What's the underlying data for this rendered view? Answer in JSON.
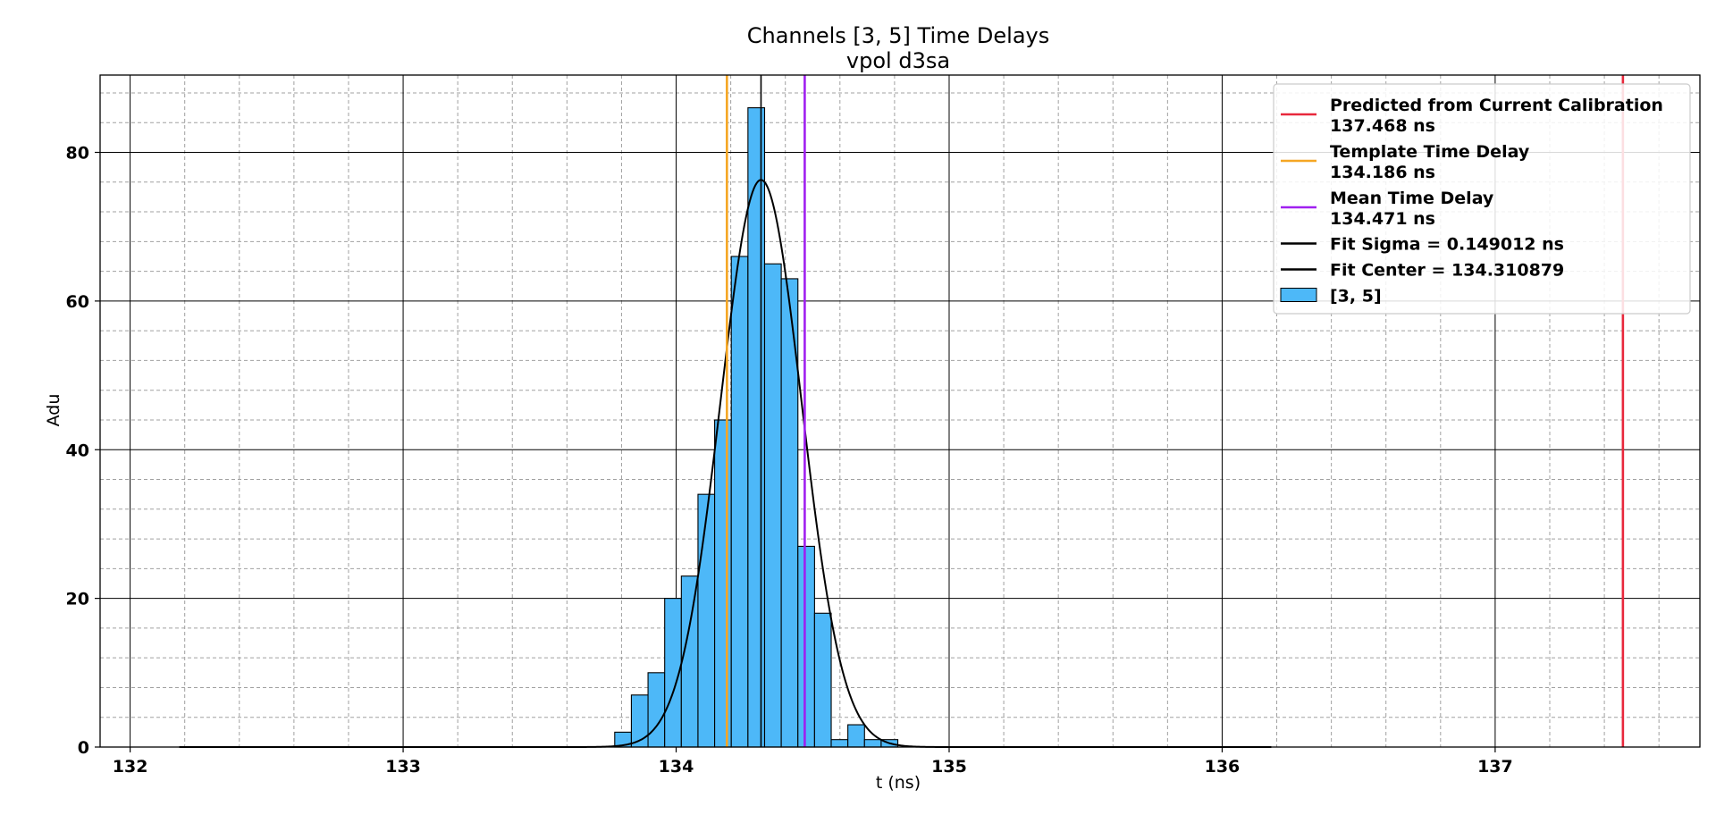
{
  "chart_data": {
    "type": "bar",
    "title": "Channels [3, 5] Time Delays",
    "subtitle": "vpol d3sa",
    "xlabel": "t (ns)",
    "ylabel": "Adu",
    "xlim": [
      131.89,
      137.75
    ],
    "ylim": [
      0,
      90.4
    ],
    "xticks": [
      132,
      133,
      134,
      135,
      136,
      137
    ],
    "yticks": [
      0,
      20,
      40,
      60,
      80
    ],
    "grid": true,
    "minor_grid": true,
    "legend_position": "top-right",
    "histogram": {
      "name": "[3, 5]",
      "color": "#4db8f8",
      "bin_width": 0.061,
      "bin_starts": [
        133.775,
        133.836,
        133.897,
        133.958,
        134.019,
        134.08,
        134.141,
        134.202,
        134.263,
        134.324,
        134.385,
        134.446,
        134.507,
        134.568,
        134.629,
        134.69,
        134.751
      ],
      "counts": [
        2,
        7,
        10,
        20,
        23,
        34,
        44,
        66,
        86,
        65,
        63,
        27,
        18,
        1,
        3,
        1,
        1
      ]
    },
    "fit": {
      "color": "#000000",
      "amplitude": 76.3,
      "center": 134.310879,
      "sigma": 0.149012,
      "x_range": [
        132.18,
        136.18
      ],
      "sigma_label": "Fit Sigma = 0.149012 ns",
      "center_label": "Fit Center = 134.310879"
    },
    "vlines": [
      {
        "name": "Predicted from Current Calibration",
        "value": 137.468,
        "value_label": "137.468 ns",
        "color": "#e8283c",
        "show_line": true
      },
      {
        "name": "Template Time Delay",
        "value": 134.186,
        "value_label": "134.186 ns",
        "color": "#f5a623",
        "show_line": true
      },
      {
        "name": "Mean Time Delay",
        "value": 134.471,
        "value_label": "134.471 ns",
        "color": "#a020f0",
        "show_line": true
      }
    ],
    "legend": [
      {
        "kind": "line",
        "color": "#e8283c",
        "line1": "Predicted from Current Calibration",
        "line2": "137.468 ns"
      },
      {
        "kind": "line",
        "color": "#f5a623",
        "line1": "Template Time Delay",
        "line2": "134.186 ns"
      },
      {
        "kind": "line",
        "color": "#a020f0",
        "line1": "Mean Time Delay",
        "line2": "134.471 ns"
      },
      {
        "kind": "line",
        "color": "#000000",
        "line1": "Fit Sigma = 0.149012 ns",
        "line2": ""
      },
      {
        "kind": "line",
        "color": "#000000",
        "line1": "Fit Center = 134.310879",
        "line2": ""
      },
      {
        "kind": "patch",
        "color": "#4db8f8",
        "line1": "[3, 5]",
        "line2": ""
      }
    ]
  }
}
